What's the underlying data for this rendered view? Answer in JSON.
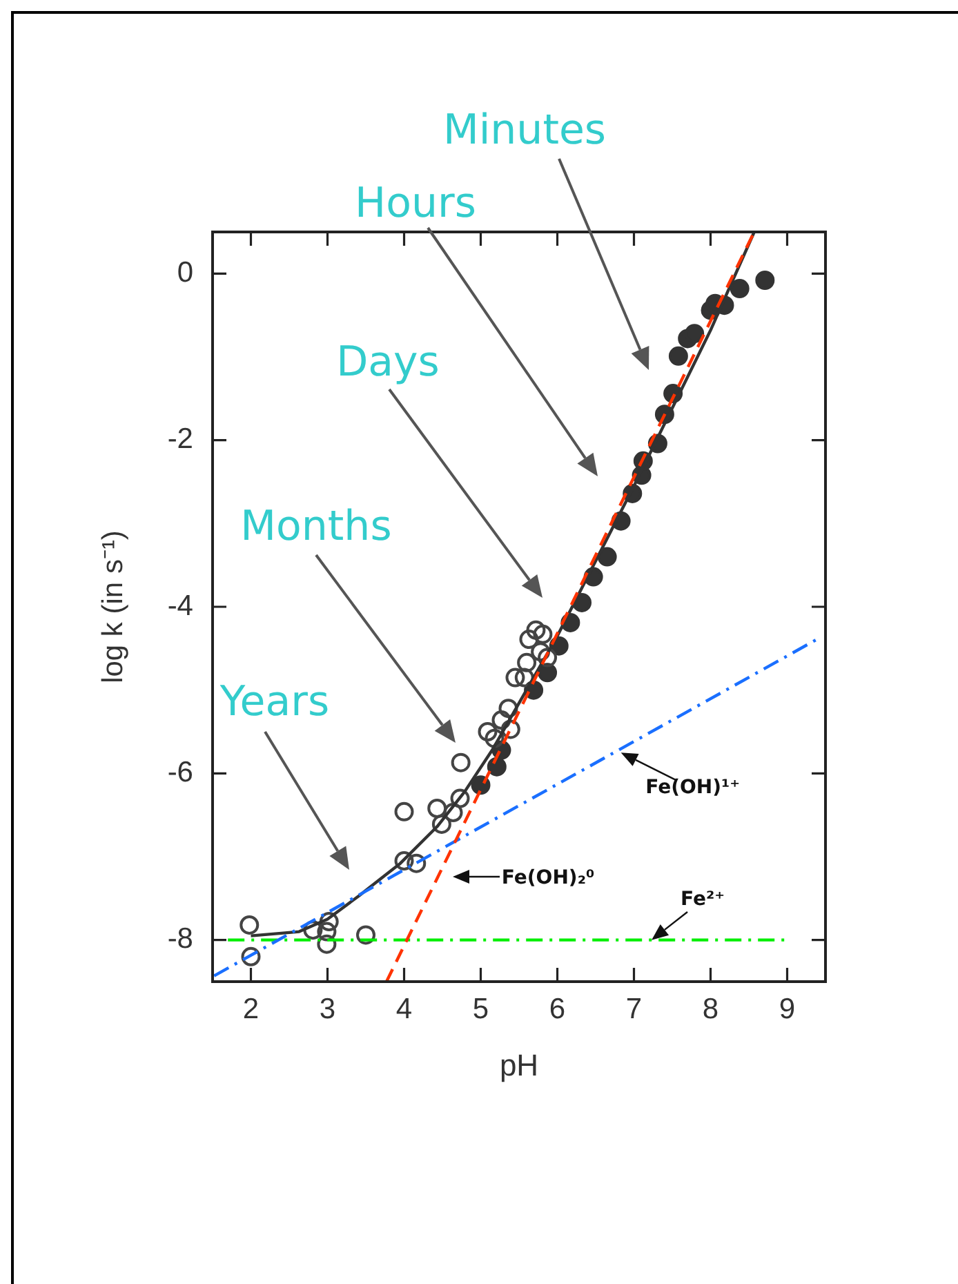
{
  "chart_data": {
    "type": "scatter",
    "xlabel": "pH",
    "ylabel": "log k (in s⁻¹)",
    "xlim": [
      1.5,
      9.5
    ],
    "ylim": [
      -8.5,
      0.5
    ],
    "xticks": [
      2,
      3,
      4,
      5,
      6,
      7,
      8,
      9
    ],
    "yticks": [
      0,
      -2,
      -4,
      -6,
      -8
    ],
    "grid": false,
    "legend": false,
    "series": [
      {
        "color": "#444444",
        "marker": "circle-open",
        "x": [
          1.98,
          2.0,
          2.81,
          3.02,
          2.99,
          2.99,
          3.5,
          4.0,
          4.16,
          4.0,
          4.43,
          4.49,
          4.64,
          4.73,
          4.74,
          5.09,
          5.18,
          5.27,
          5.36,
          5.39,
          5.45,
          5.6,
          5.57,
          5.63,
          5.72,
          5.81,
          5.78,
          5.87
        ],
        "values": [
          -7.82,
          -8.2,
          -7.88,
          -7.78,
          -7.9,
          -8.05,
          -7.94,
          -7.05,
          -7.08,
          -6.46,
          -6.42,
          -6.61,
          -6.47,
          -6.3,
          -5.87,
          -5.5,
          -5.58,
          -5.36,
          -5.22,
          -5.47,
          -4.85,
          -4.67,
          -4.85,
          -4.39,
          -4.28,
          -4.33,
          -4.54,
          -4.61
        ]
      },
      {
        "color": "#333333",
        "marker": "circle",
        "x": [
          5.0,
          5.21,
          5.27,
          5.69,
          5.87,
          6.02,
          6.17,
          6.32,
          6.47,
          6.65,
          6.83,
          6.98,
          7.1,
          7.12,
          7.31,
          7.4,
          7.51,
          7.58,
          7.7,
          7.79,
          8.0,
          8.06,
          8.18,
          8.38,
          8.71
        ],
        "values": [
          -6.14,
          -5.92,
          -5.72,
          -5.0,
          -4.79,
          -4.47,
          -4.19,
          -3.95,
          -3.64,
          -3.4,
          -2.97,
          -2.64,
          -2.42,
          -2.25,
          -2.04,
          -1.69,
          -1.44,
          -0.99,
          -0.78,
          -0.72,
          -0.44,
          -0.36,
          -0.38,
          -0.18,
          -0.08
        ]
      },
      {
        "type": "line",
        "color": "#ff3300",
        "line_style": "dashed",
        "x": [
          3.77,
          8.57
        ],
        "values": [
          -8.5,
          0.5
        ]
      },
      {
        "type": "line",
        "color": "#1a6fff",
        "line_style": "dashdot",
        "x": [
          1.52,
          9.39
        ],
        "values": [
          -8.43,
          -4.39
        ]
      },
      {
        "type": "line",
        "color": "#00ee00",
        "line_style": "dashdot",
        "x": [
          1.7,
          9.0
        ],
        "values": [
          -8.0,
          -8.0
        ]
      },
      {
        "type": "line",
        "color": "#333333",
        "line_style": "solid",
        "x": [
          2.0,
          2.63,
          3.0,
          3.41,
          3.95,
          4.43,
          4.79,
          5.15,
          6.0,
          7.0,
          8.0,
          8.57
        ],
        "values": [
          -7.95,
          -7.9,
          -7.75,
          -7.47,
          -7.08,
          -6.64,
          -6.22,
          -5.72,
          -4.35,
          -2.55,
          -0.68,
          0.5
        ]
      }
    ],
    "annotations": [
      "Minutes",
      "Hours",
      "Days",
      "Months",
      "Years",
      {
        "text": "Fe(OH)¹⁺",
        "x": 6.83,
        "y": -5.75
      },
      "Fe(OH)₂⁰",
      {
        "text": "Fe²⁺",
        "x": 7.23,
        "y": -8.0
      }
    ]
  }
}
